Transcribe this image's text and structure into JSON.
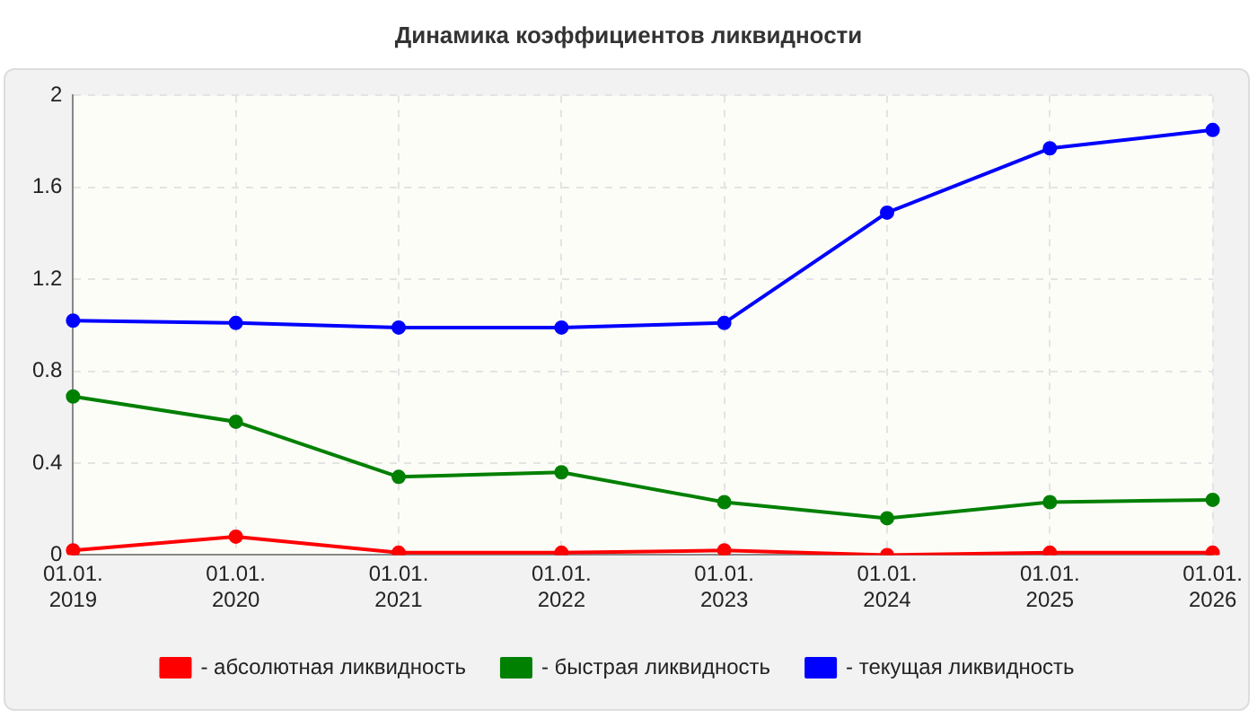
{
  "chart_data": {
    "type": "line",
    "title": "Динамика коэффициентов ликвидности",
    "categories": [
      "01.01. 2019",
      "01.01. 2020",
      "01.01. 2021",
      "01.01. 2022",
      "01.01. 2023",
      "01.01. 2024",
      "01.01. 2025",
      "01.01. 2026"
    ],
    "series": [
      {
        "name": "- абсолютная ликвидность",
        "color": "#ff0000",
        "values": [
          0.02,
          0.08,
          0.01,
          0.01,
          0.02,
          0.0,
          0.01,
          0.01
        ]
      },
      {
        "name": "- быстрая ликвидность",
        "color": "#008000",
        "values": [
          0.69,
          0.58,
          0.34,
          0.36,
          0.23,
          0.16,
          0.23,
          0.24
        ]
      },
      {
        "name": "- текущая ликвидность",
        "color": "#0000ff",
        "values": [
          1.02,
          1.01,
          0.99,
          0.99,
          1.01,
          1.49,
          1.77,
          1.85
        ]
      }
    ],
    "ylim": [
      0,
      2
    ],
    "yticks": [
      0,
      0.4,
      0.8,
      1.2,
      1.6,
      2
    ],
    "grid": true,
    "legend": "bottom",
    "marker": "circle",
    "line_style": "solid"
  }
}
